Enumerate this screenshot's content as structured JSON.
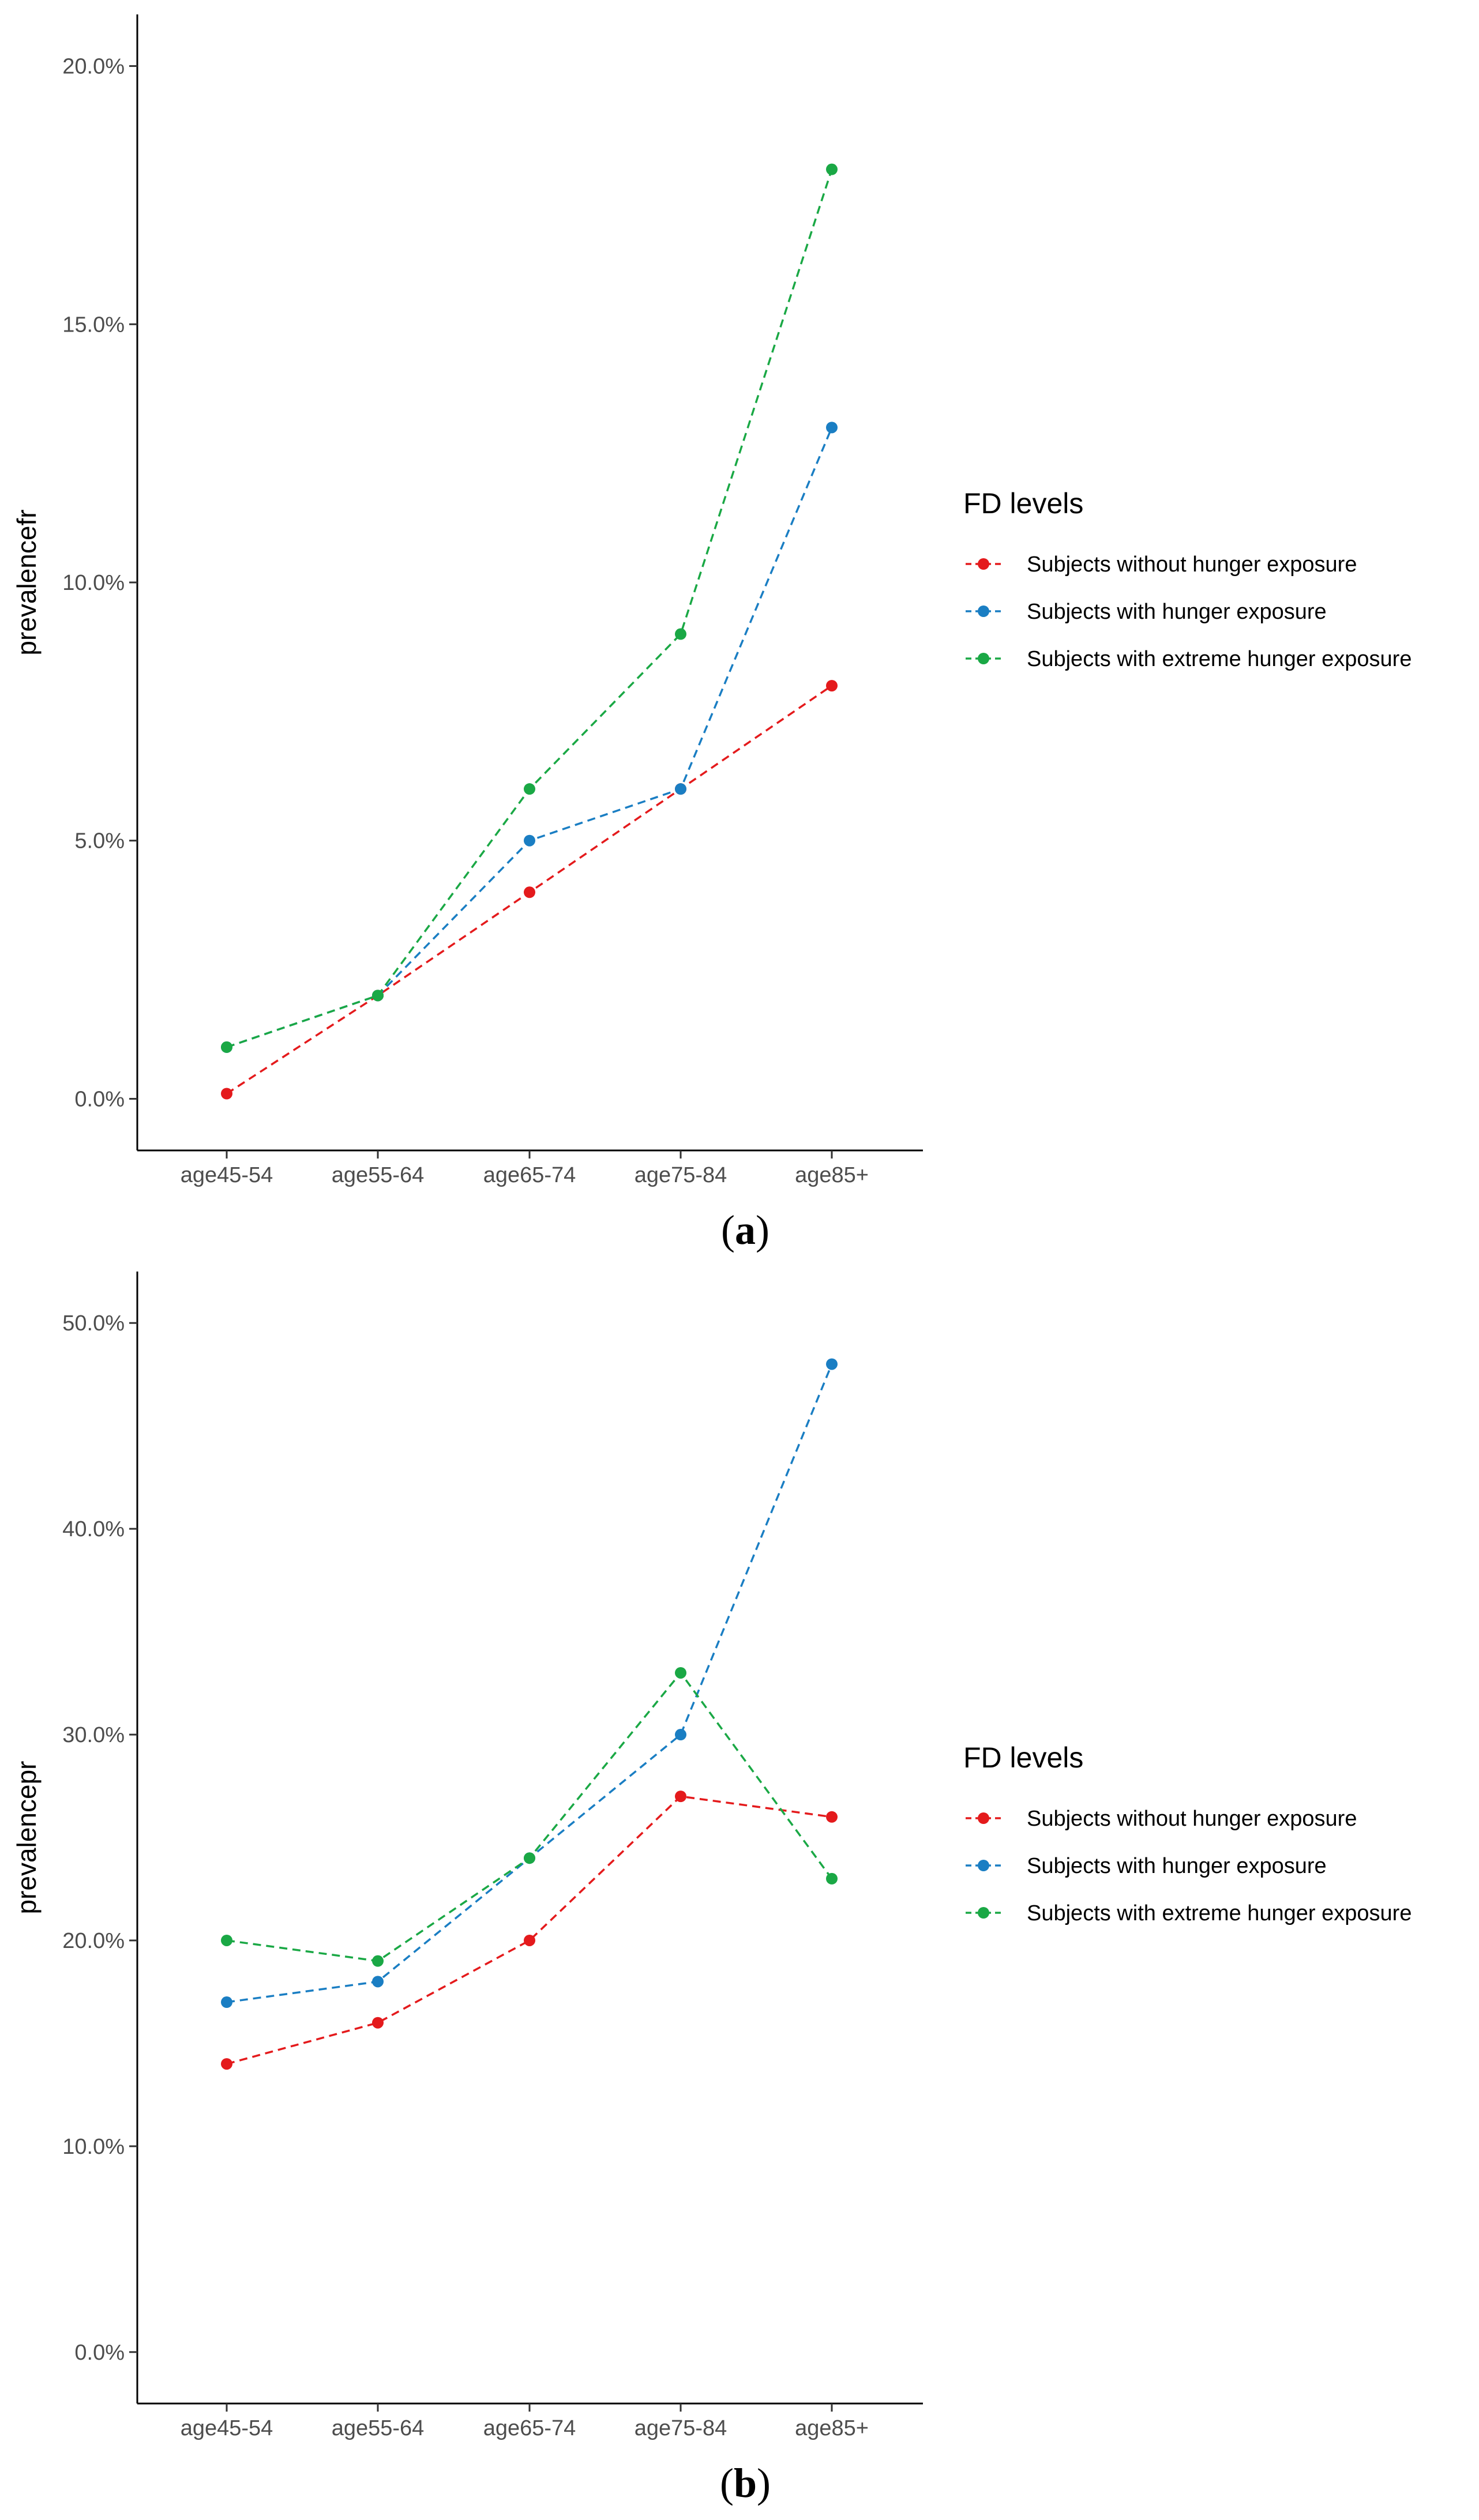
{
  "chart_data": [
    {
      "type": "line",
      "panel_label": "a",
      "ylabel": "prevalencefr",
      "xlabel": "",
      "categories": [
        "age45-54",
        "age55-64",
        "age65-74",
        "age75-84",
        "age85+"
      ],
      "ylim": [
        -0.01,
        0.21
      ],
      "yticks": [
        0.0,
        0.05,
        0.1,
        0.15,
        0.2
      ],
      "ytick_labels": [
        "0.0%",
        "5.0%",
        "10.0%",
        "15.0%",
        "20.0%"
      ],
      "legend": {
        "title": "FD levels",
        "position": "right",
        "entries": [
          "Subjects without hunger exposure",
          "Subjects with hunger exposure",
          "Subjects with extreme hunger exposure"
        ]
      },
      "series": [
        {
          "name": "Subjects without hunger exposure",
          "color": "#e41a1c",
          "values": [
            0.001,
            0.02,
            0.04,
            0.06,
            0.08
          ]
        },
        {
          "name": "Subjects with hunger exposure",
          "color": "#1a7ec3",
          "values": [
            0.01,
            0.02,
            0.05,
            0.06,
            0.13
          ]
        },
        {
          "name": "Subjects with extreme hunger exposure",
          "color": "#1aa845",
          "values": [
            0.01,
            0.02,
            0.06,
            0.09,
            0.18
          ]
        }
      ]
    },
    {
      "type": "line",
      "panel_label": "b",
      "ylabel": "prevalencepr",
      "xlabel": "",
      "categories": [
        "age45-54",
        "age55-64",
        "age65-74",
        "age75-84",
        "age85+"
      ],
      "ylim": [
        -0.025,
        0.525
      ],
      "yticks": [
        0.0,
        0.1,
        0.2,
        0.3,
        0.4,
        0.5
      ],
      "ytick_labels": [
        "0.0%",
        "10.0%",
        "20.0%",
        "30.0%",
        "40.0%",
        "50.0%"
      ],
      "legend": {
        "title": "FD levels",
        "position": "right",
        "entries": [
          "Subjects without hunger exposure",
          "Subjects with hunger exposure",
          "Subjects with extreme hunger exposure"
        ]
      },
      "series": [
        {
          "name": "Subjects without hunger exposure",
          "color": "#e41a1c",
          "values": [
            0.14,
            0.16,
            0.2,
            0.27,
            0.26
          ]
        },
        {
          "name": "Subjects with hunger exposure",
          "color": "#1a7ec3",
          "values": [
            0.17,
            0.18,
            0.24,
            0.3,
            0.48
          ]
        },
        {
          "name": "Subjects with extreme hunger exposure",
          "color": "#1aa845",
          "values": [
            0.2,
            0.19,
            0.24,
            0.33,
            0.23
          ]
        }
      ]
    }
  ]
}
